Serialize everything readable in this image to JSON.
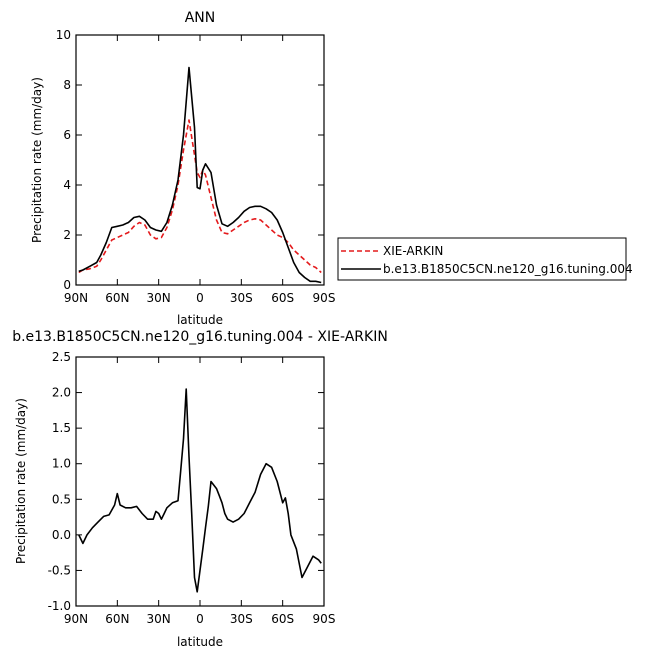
{
  "chart_data": [
    {
      "type": "line",
      "title": "ANN",
      "xlabel": "latitude",
      "ylabel": "Precipitation rate  (mm/day)",
      "xlim": [
        90,
        -90
      ],
      "ylim": [
        0,
        10
      ],
      "x_ticks": [
        {
          "value": 90,
          "label": "90N"
        },
        {
          "value": 60,
          "label": "60N"
        },
        {
          "value": 30,
          "label": "30N"
        },
        {
          "value": 0,
          "label": "0"
        },
        {
          "value": -30,
          "label": "30S"
        },
        {
          "value": -60,
          "label": "60S"
        },
        {
          "value": -90,
          "label": "90S"
        }
      ],
      "y_ticks": [
        0,
        2,
        4,
        6,
        8,
        10
      ],
      "legend": "outside-right",
      "series": [
        {
          "name": "XIE-ARKIN",
          "color": "#e41a1c",
          "dash": true,
          "x": [
            88,
            85,
            80,
            75,
            72,
            68,
            64,
            60,
            56,
            52,
            48,
            44,
            40,
            36,
            32,
            28,
            24,
            20,
            16,
            12,
            8,
            4,
            2,
            0,
            -2,
            -4,
            -8,
            -12,
            -16,
            -20,
            -24,
            -28,
            -32,
            -36,
            -40,
            -44,
            -48,
            -52,
            -56,
            -60,
            -64,
            -68,
            -72,
            -76,
            -80,
            -84,
            -88
          ],
          "y": [
            0.5,
            0.6,
            0.65,
            0.75,
            1.0,
            1.4,
            1.8,
            1.9,
            2.0,
            2.1,
            2.35,
            2.5,
            2.4,
            2.0,
            1.85,
            1.9,
            2.3,
            3.0,
            4.0,
            5.4,
            6.6,
            5.2,
            4.5,
            4.3,
            4.6,
            4.4,
            3.5,
            2.6,
            2.1,
            2.05,
            2.2,
            2.35,
            2.5,
            2.6,
            2.65,
            2.6,
            2.4,
            2.2,
            2.0,
            1.9,
            1.7,
            1.4,
            1.2,
            1.0,
            0.8,
            0.7,
            0.5
          ]
        },
        {
          "name": "b.e13.B1850C5CN.ne120_g16.tuning.004",
          "color": "#000000",
          "dash": false,
          "x": [
            88,
            85,
            80,
            75,
            72,
            68,
            64,
            60,
            56,
            52,
            48,
            44,
            40,
            36,
            32,
            28,
            24,
            20,
            16,
            12,
            8,
            4,
            2,
            0,
            -2,
            -4,
            -8,
            -12,
            -16,
            -20,
            -24,
            -28,
            -32,
            -36,
            -40,
            -44,
            -48,
            -52,
            -56,
            -60,
            -64,
            -68,
            -72,
            -76,
            -80,
            -84,
            -88
          ],
          "y": [
            0.55,
            0.6,
            0.75,
            0.9,
            1.2,
            1.7,
            2.3,
            2.35,
            2.4,
            2.5,
            2.7,
            2.75,
            2.6,
            2.3,
            2.2,
            2.15,
            2.5,
            3.2,
            4.2,
            6.0,
            8.7,
            6.3,
            3.9,
            3.85,
            4.6,
            4.85,
            4.5,
            3.2,
            2.45,
            2.35,
            2.5,
            2.7,
            2.95,
            3.1,
            3.15,
            3.15,
            3.05,
            2.9,
            2.6,
            2.1,
            1.5,
            0.9,
            0.5,
            0.3,
            0.15,
            0.15,
            0.1
          ]
        }
      ]
    },
    {
      "type": "line",
      "title": "b.e13.B1850C5CN.ne120_g16.tuning.004  -  XIE-ARKIN",
      "xlabel": "latitude",
      "ylabel": "Precipitation rate  (mm/day)",
      "xlim": [
        90,
        -90
      ],
      "ylim": [
        -1.0,
        2.5
      ],
      "x_ticks": [
        {
          "value": 90,
          "label": "90N"
        },
        {
          "value": 60,
          "label": "60N"
        },
        {
          "value": 30,
          "label": "30N"
        },
        {
          "value": 0,
          "label": "0"
        },
        {
          "value": -30,
          "label": "30S"
        },
        {
          "value": -60,
          "label": "60S"
        },
        {
          "value": -90,
          "label": "90S"
        }
      ],
      "y_ticks": [
        -1.0,
        -0.5,
        0.0,
        0.5,
        1.0,
        1.5,
        2.0,
        2.5
      ],
      "series": [
        {
          "color": "#000000",
          "dash": false,
          "x": [
            88,
            85,
            82,
            78,
            74,
            70,
            66,
            62,
            60,
            58,
            54,
            50,
            46,
            42,
            38,
            34,
            32,
            30,
            28,
            26,
            24,
            20,
            16,
            14,
            12,
            10,
            8,
            6,
            4,
            2,
            0,
            -2,
            -4,
            -6,
            -8,
            -10,
            -12,
            -14,
            -16,
            -18,
            -20,
            -24,
            -28,
            -32,
            -36,
            -40,
            -44,
            -48,
            -52,
            -56,
            -60,
            -62,
            -64,
            -66,
            -70,
            -74,
            -78,
            -82,
            -86,
            -88
          ],
          "y": [
            0.0,
            -0.12,
            0.0,
            0.1,
            0.18,
            0.26,
            0.28,
            0.42,
            0.58,
            0.42,
            0.38,
            0.38,
            0.4,
            0.3,
            0.22,
            0.22,
            0.33,
            0.3,
            0.22,
            0.3,
            0.38,
            0.45,
            0.48,
            0.9,
            1.35,
            2.05,
            1.1,
            0.3,
            -0.6,
            -0.8,
            -0.5,
            -0.2,
            0.1,
            0.4,
            0.75,
            0.7,
            0.65,
            0.55,
            0.45,
            0.3,
            0.22,
            0.18,
            0.22,
            0.3,
            0.45,
            0.6,
            0.85,
            1.0,
            0.95,
            0.75,
            0.45,
            0.52,
            0.3,
            0.0,
            -0.2,
            -0.6,
            -0.45,
            -0.3,
            -0.35,
            -0.4
          ]
        }
      ]
    }
  ]
}
